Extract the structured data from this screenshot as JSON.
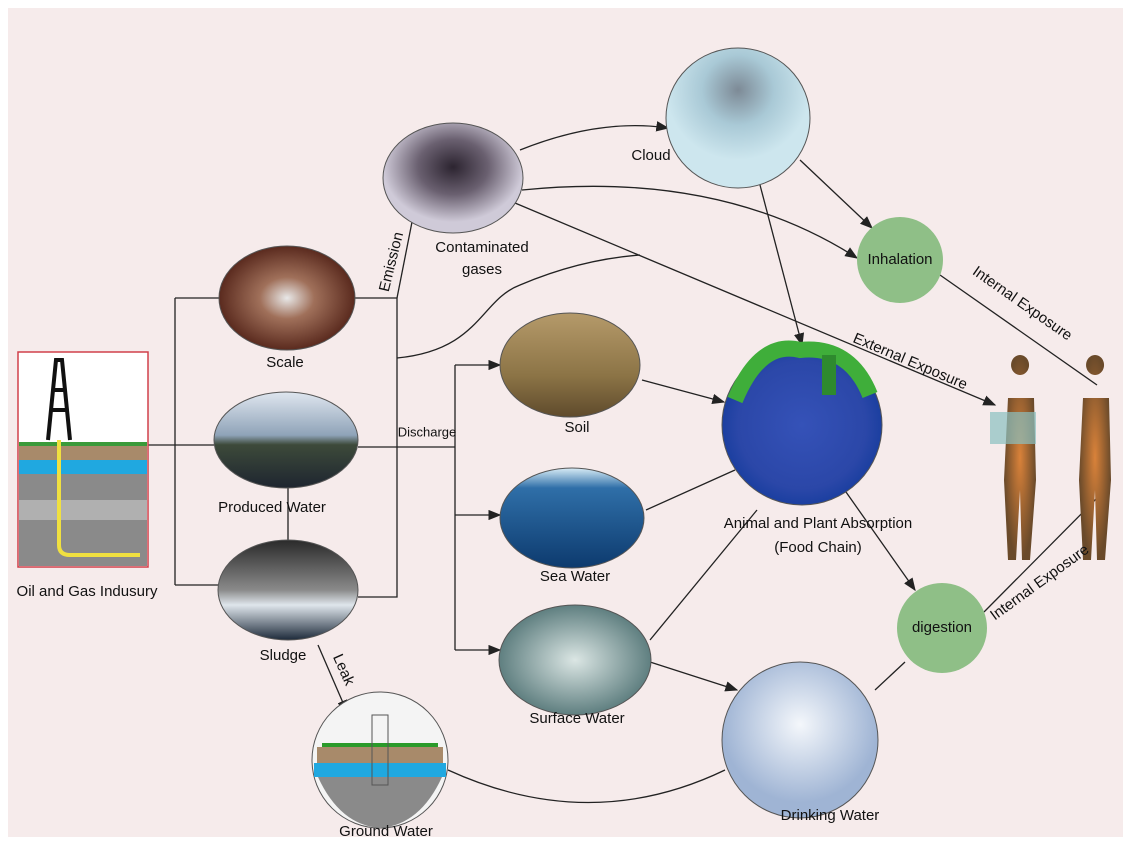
{
  "nodes": [
    {
      "label": "Oil and Gas Indusury"
    },
    {
      "label": "Scale"
    },
    {
      "label": "Produced Water"
    },
    {
      "label": "Sludge"
    },
    {
      "label": [
        "Contaminated",
        "gases"
      ]
    },
    {
      "label": "Cloud"
    },
    {
      "label": "Inhalation"
    },
    {
      "label": "Soil"
    },
    {
      "label": "Sea Water"
    },
    {
      "label": "Surface Water"
    },
    {
      "label": [
        "Animal and Plant Absorption",
        "(Food Chain)"
      ]
    },
    {
      "label": "digestion"
    },
    {
      "label": "Drinking Water"
    },
    {
      "label": "Ground Water"
    }
  ],
  "edge_labels": [
    "Emission",
    "Discharge",
    "Leak",
    "External Exposure",
    "Internal Exposure",
    "Internal Exposure"
  ]
}
